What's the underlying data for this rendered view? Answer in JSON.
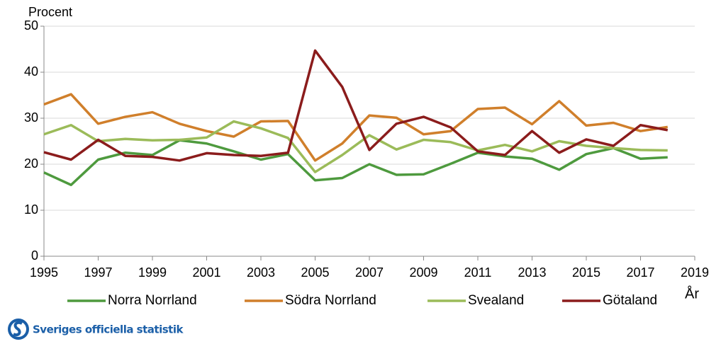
{
  "chart_data": {
    "type": "line",
    "y_label": "Procent",
    "x_label": "År",
    "x": [
      1995,
      1996,
      1997,
      1998,
      1999,
      2000,
      2001,
      2002,
      2003,
      2004,
      2005,
      2006,
      2007,
      2008,
      2009,
      2010,
      2011,
      2012,
      2013,
      2014,
      2015,
      2016,
      2017,
      2018
    ],
    "series": [
      {
        "name": "Norra Norrland",
        "color": "#4e9a3e",
        "values": [
          18.2,
          15.5,
          21,
          22.5,
          22,
          25.2,
          24.5,
          22.8,
          21,
          22.2,
          16.5,
          17,
          20,
          17.7,
          17.8,
          20.1,
          22.5,
          21.7,
          21.2,
          18.8,
          22.2,
          23.5,
          21.2,
          21.5
        ]
      },
      {
        "name": "Södra Norrland",
        "color": "#d07f2b",
        "values": [
          33,
          35.2,
          28.8,
          30.3,
          31.3,
          28.8,
          27.2,
          26,
          29.3,
          29.4,
          20.8,
          24.5,
          30.6,
          30.1,
          26.5,
          27.2,
          32,
          32.3,
          28.7,
          33.7,
          28.4,
          29,
          27.2,
          28.1
        ]
      },
      {
        "name": "Svealand",
        "color": "#9bbb59",
        "values": [
          26.5,
          28.5,
          25,
          25.5,
          25.2,
          25.3,
          25.8,
          29.3,
          27.8,
          25.7,
          18.3,
          22,
          26.3,
          23.2,
          25.3,
          24.8,
          23,
          24.2,
          22.8,
          25,
          24,
          23.5,
          23.1,
          23
        ]
      },
      {
        "name": "Götaland",
        "color": "#8b1c1c",
        "values": [
          22.6,
          21,
          25.3,
          21.8,
          21.6,
          20.8,
          22.4,
          22,
          21.8,
          22.5,
          44.7,
          36.8,
          23.1,
          28.8,
          30.3,
          28,
          22.8,
          22,
          27.2,
          22.5,
          25.4,
          24,
          28.5,
          27.4
        ]
      }
    ],
    "xlim": [
      1995,
      2019
    ],
    "xticks": [
      1995,
      1997,
      1999,
      2001,
      2003,
      2005,
      2007,
      2009,
      2011,
      2013,
      2015,
      2017,
      2019
    ],
    "ylim": [
      0,
      50
    ],
    "yticks": [
      0,
      10,
      20,
      30,
      40,
      50
    ],
    "grid": true,
    "legend": "bottom"
  },
  "footer": {
    "logo_text": "Sveriges officiella statistik"
  }
}
